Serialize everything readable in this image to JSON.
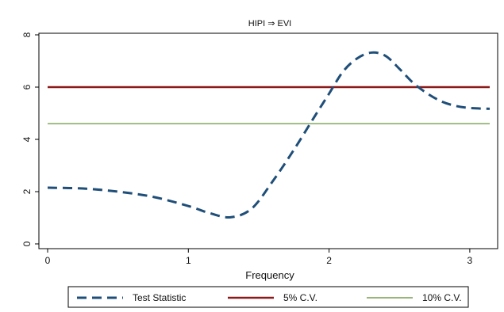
{
  "chart_data": {
    "type": "line",
    "title": "HIPI ⇒ EVI",
    "xlabel": "Frequency",
    "ylabel": "",
    "xlim": [
      0,
      3.1416
    ],
    "ylim": [
      0,
      8
    ],
    "x_ticks": [
      "0",
      "1",
      "2",
      "3"
    ],
    "y_ticks": [
      "0",
      "2",
      "4",
      "6",
      "8"
    ],
    "grid": false,
    "legend_position": "bottom",
    "series": [
      {
        "name": "Test Statistic",
        "style": "dashed",
        "color": "#1f4e79",
        "x": [
          0,
          0.25,
          0.5,
          0.75,
          1.0,
          1.15,
          1.3,
          1.45,
          1.6,
          1.75,
          1.9,
          2.0,
          2.1,
          2.2,
          2.3,
          2.4,
          2.5,
          2.6,
          2.7,
          2.8,
          2.9,
          3.0,
          3.1416
        ],
        "y": [
          2.15,
          2.12,
          2.0,
          1.8,
          1.45,
          1.18,
          1.02,
          1.35,
          2.4,
          3.6,
          4.9,
          5.75,
          6.6,
          7.1,
          7.32,
          7.2,
          6.7,
          6.15,
          5.75,
          5.45,
          5.28,
          5.2,
          5.17
        ]
      },
      {
        "name": "5% C.V.",
        "style": "solid",
        "color": "#8b1a1a",
        "x": [
          0,
          3.1416
        ],
        "y": [
          6.0,
          6.0
        ]
      },
      {
        "name": "10% C.V.",
        "style": "solid",
        "color": "#5a8a2a",
        "x": [
          0,
          3.1416
        ],
        "y": [
          4.6,
          4.6
        ]
      }
    ]
  }
}
